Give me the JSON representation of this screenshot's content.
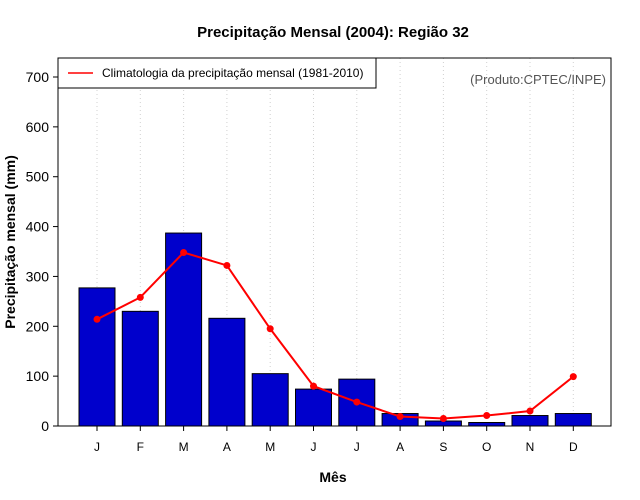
{
  "colors": {
    "bar": "#0000cc",
    "line": "#ff0000",
    "grid": "#d0d0d0",
    "credit": "#555555"
  },
  "chart_data": {
    "type": "bar",
    "title": "Precipitação Mensal (2004): Região 32",
    "xlabel": "Mês",
    "ylabel": "Precipitação mensal (mm)",
    "ylim": [
      0,
      700
    ],
    "yticks": [
      0,
      100,
      200,
      300,
      400,
      500,
      600,
      700
    ],
    "grid": "vertical dotted",
    "categories": [
      "J",
      "F",
      "M",
      "A",
      "M",
      "J",
      "J",
      "A",
      "S",
      "O",
      "N",
      "D"
    ],
    "series": [
      {
        "name": "Precipitação mensal 2004",
        "type": "bar",
        "values": [
          277,
          230,
          387,
          216,
          105,
          74,
          94,
          25,
          10,
          7,
          21,
          25
        ]
      },
      {
        "name": "Climatologia da precipitação mensal (1981-2010)",
        "type": "line",
        "values": [
          214,
          258,
          348,
          322,
          195,
          80,
          48,
          19,
          15,
          21,
          30,
          99
        ]
      }
    ],
    "legend": {
      "entries": [
        "Climatologia da precipitação mensal (1981-2010)"
      ],
      "position": "top-left"
    },
    "annotation": "(Produto:CPTEC/INPE)"
  }
}
